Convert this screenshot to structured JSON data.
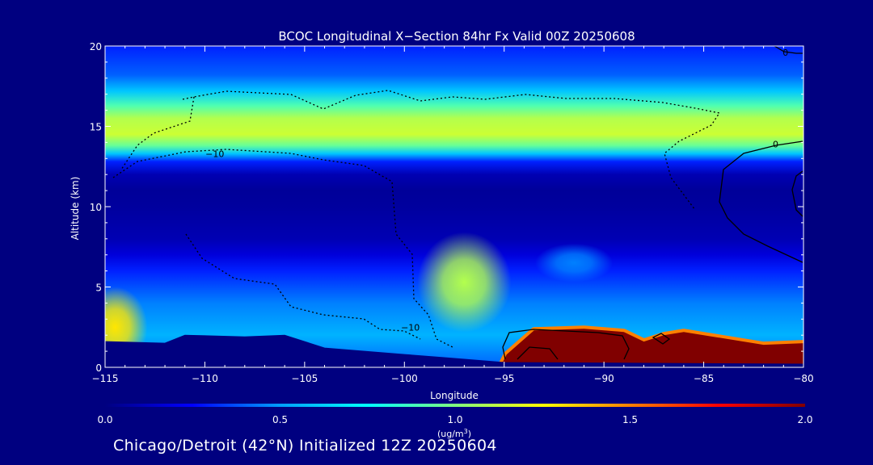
{
  "chart_data": {
    "type": "heatmap",
    "title": "BCOC Longitudinal X−Section 84hr  Fx Valid 00Z 20250608",
    "xlabel": "Longitude",
    "ylabel": "Altitude (km)",
    "xlim": [
      -115,
      -80
    ],
    "ylim": [
      0,
      20
    ],
    "x_ticks": [
      -115,
      -110,
      -105,
      -100,
      -95,
      -90,
      -85,
      -80
    ],
    "x_tick_labels": [
      "−115",
      "−110",
      "−105",
      "−100",
      "−95",
      "−90",
      "−85",
      "−80"
    ],
    "y_ticks": [
      0,
      5,
      10,
      15,
      20
    ],
    "y_tick_labels": [
      "0",
      "5",
      "10",
      "15",
      "20"
    ],
    "colorbar": {
      "min": 0.0,
      "max": 2.0,
      "ticks": [
        0.0,
        0.5,
        1.0,
        1.5,
        2.0
      ],
      "tick_labels": [
        "0.0",
        "0.5",
        "1.0",
        "1.5",
        "2.0"
      ],
      "unit_prefix": "(ug/m",
      "unit_sup": "3",
      "unit_suffix": ")",
      "colors": [
        "#000080",
        "#0000ff",
        "#00a0ff",
        "#00ffff",
        "#80ff80",
        "#ffff00",
        "#ff8000",
        "#ff0000",
        "#800000"
      ]
    },
    "altitude_profile": [
      {
        "z": 0,
        "value": 0.4
      },
      {
        "z": 2,
        "value": 0.55
      },
      {
        "z": 4,
        "value": 0.45
      },
      {
        "z": 6,
        "value": 0.3
      },
      {
        "z": 7,
        "value": 0.18
      },
      {
        "z": 8,
        "value": 0.1
      },
      {
        "z": 10,
        "value": 0.06
      },
      {
        "z": 11,
        "value": 0.05
      },
      {
        "z": 12,
        "value": 0.1
      },
      {
        "z": 12.8,
        "value": 0.3
      },
      {
        "z": 13.3,
        "value": 0.6
      },
      {
        "z": 13.8,
        "value": 0.95
      },
      {
        "z": 14.5,
        "value": 1.15
      },
      {
        "z": 15.5,
        "value": 1.1
      },
      {
        "z": 16.3,
        "value": 0.9
      },
      {
        "z": 17.2,
        "value": 0.6
      },
      {
        "z": 18.2,
        "value": 0.4
      },
      {
        "z": 20,
        "value": 0.3
      }
    ],
    "features": [
      {
        "lon": -97.0,
        "z": 5.3,
        "value": 1.1
      },
      {
        "lon": -91.5,
        "z": 6.5,
        "value": 0.45
      },
      {
        "lon": -114.5,
        "z": 2.5,
        "value": 1.3
      },
      {
        "lon": -88.0,
        "z": 1.5,
        "value": 2.0
      }
    ],
    "terrain": [
      {
        "lon": -115,
        "z": 1.6
      },
      {
        "lon": -112,
        "z": 1.5
      },
      {
        "lon": -111,
        "z": 2.0
      },
      {
        "lon": -108,
        "z": 1.9
      },
      {
        "lon": -106,
        "z": 2.0
      },
      {
        "lon": -104,
        "z": 1.2
      },
      {
        "lon": -100,
        "z": 0.8
      },
      {
        "lon": -98,
        "z": 0.6
      },
      {
        "lon": -95,
        "z": 0.3
      },
      {
        "lon": -80,
        "z": 0.2
      }
    ],
    "contour_labels": [
      {
        "text": "−10",
        "lon": -109.5,
        "z": 13.3
      },
      {
        "text": "−10",
        "lon": -99.7,
        "z": 2.5
      },
      {
        "text": "0",
        "lon": -81.4,
        "z": 13.9
      },
      {
        "text": "0",
        "lon": -80.9,
        "z": 19.6
      }
    ],
    "grid": false
  },
  "footer": "Chicago/Detroit (42°N) Initialized 12Z 20250604"
}
